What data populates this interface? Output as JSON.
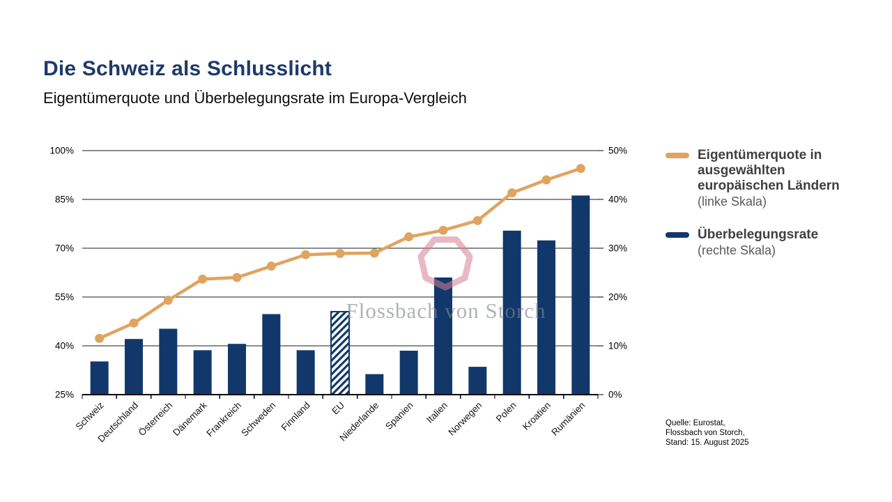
{
  "header": {
    "title": "Die Schweiz als Schlusslicht",
    "subtitle": "Eigentümerquote und Überbelegungsrate im Europa-Vergleich"
  },
  "legend": [
    {
      "lines": [
        "Eigentümerquote in",
        "ausgewählten",
        "europäischen Ländern"
      ],
      "sublabel": "(linke Skala)",
      "color": "#DFA45F"
    },
    {
      "lines": [
        "Überbelegungsrate"
      ],
      "sublabel": "(rechte Skala)",
      "color": "#12386B"
    }
  ],
  "watermark": {
    "text": "Flossbach von Storch"
  },
  "source": {
    "lines": [
      "Quelle: Eurostat,",
      "Flossbach von Storch,",
      "Stand: 15. August 2025"
    ]
  },
  "chart_data": {
    "type": "combo-bar-line",
    "categories": [
      "Schweiz",
      "Deutschland",
      "Österreich",
      "Dänemark",
      "Frankreich",
      "Schweden",
      "Finnland",
      "EU",
      "Niederlande",
      "Spanien",
      "Italien",
      "Norwegen",
      "Polen",
      "Kroatien",
      "Rumänien"
    ],
    "series": [
      {
        "name": "Eigentümerquote in ausgewählten europäischen Ländern (linke Skala)",
        "type": "line",
        "axis": "left",
        "color": "#DFA45F",
        "values": [
          42.3,
          47,
          54,
          60.5,
          61,
          64.5,
          68,
          68.4,
          68.5,
          73.5,
          75.5,
          78.5,
          87,
          91,
          94.5
        ]
      },
      {
        "name": "Überbelegungsrate (rechte Skala)",
        "type": "bar",
        "axis": "right",
        "color": "#12386B",
        "values": [
          6.8,
          11.4,
          13.5,
          9.1,
          10.4,
          16.5,
          9.1,
          17.0,
          4.2,
          9.0,
          24.0,
          5.7,
          33.6,
          31.6,
          40.8
        ],
        "hatched_index": 7
      }
    ],
    "left_axis": {
      "min": 25,
      "max": 100,
      "tick_labels": [
        "100%",
        "85%",
        "70%",
        "55%",
        "40%",
        "25%"
      ]
    },
    "right_axis": {
      "min": 0,
      "max": 50,
      "tick_labels": [
        "50%",
        "40%",
        "30%",
        "20%",
        "10%",
        "0%"
      ]
    },
    "grid": "horizontal",
    "grid_color": "#1a1a1a",
    "axis_color": "#000000",
    "legend_position": "right"
  }
}
